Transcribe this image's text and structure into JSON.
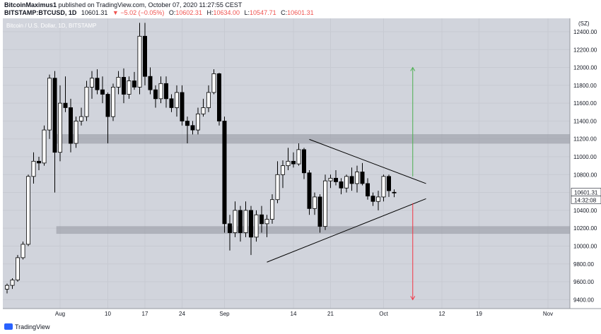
{
  "header": {
    "published_by": "BitcoinMaximus1",
    "published_text": "published on TradingView.com, October 07, 2020 11:27:55 CEST",
    "symbol": "BITSTAMP:BTCUSD, 1D",
    "last": "10601.31",
    "change": "▼ −5.02 (−0.05%)",
    "o_label": "O:",
    "o_value": "10602.31",
    "h_label": "H:",
    "h_value": "10634.00",
    "l_label": "L:",
    "l_value": "10547.71",
    "c_label": "C:",
    "c_value": "10601.31"
  },
  "footer": {
    "brand": "TradingView"
  },
  "chart_data": {
    "type": "candlestick",
    "watermark": "Bitcoin / U.S. Dollar, 1D, BITSTAMP",
    "ylim": [
      9300,
      12550
    ],
    "y_ticks": [
      9400,
      9600,
      9800,
      10000,
      10200,
      10400,
      10600,
      10800,
      11000,
      11200,
      11400,
      11600,
      11800,
      12000,
      12200,
      12400
    ],
    "y_tick_labels": [
      "9400.00",
      "9600.00",
      "9800.00",
      "10000.00",
      "10200.00",
      "10400.00",
      "10600.00",
      "10800.00",
      "11000.00",
      "11200.00",
      "11400.00",
      "11600.00",
      "11800.00",
      "12000.00",
      "12200.00",
      "12400.00"
    ],
    "y_top_label": "(SZ)",
    "last_price_label": "10601.31",
    "countdown_label": "14:32:08",
    "x_ticks": [
      {
        "label": "Aug",
        "bar": 10
      },
      {
        "label": "10",
        "bar": 19
      },
      {
        "label": "17",
        "bar": 26
      },
      {
        "label": "24",
        "bar": 33
      },
      {
        "label": "Sep",
        "bar": 41
      },
      {
        "label": "14",
        "bar": 54
      },
      {
        "label": "21",
        "bar": 61
      },
      {
        "label": "Oct",
        "bar": 71
      },
      {
        "label": "12",
        "bar": 82
      },
      {
        "label": "19",
        "bar": 89
      },
      {
        "label": "Nov",
        "bar": 102
      }
    ],
    "candles": [
      [
        9518,
        9580,
        9470,
        9560
      ],
      [
        9560,
        9640,
        9520,
        9620
      ],
      [
        9620,
        9900,
        9600,
        9870
      ],
      [
        9870,
        10050,
        9850,
        10020
      ],
      [
        10020,
        10800,
        10000,
        10780
      ],
      [
        10780,
        11050,
        10700,
        10950
      ],
      [
        10950,
        11000,
        10850,
        10930
      ],
      [
        10930,
        11350,
        10900,
        11300
      ],
      [
        11300,
        11920,
        11200,
        11880
      ],
      [
        11880,
        11960,
        10600,
        11050
      ],
      [
        11050,
        11800,
        10950,
        11600
      ],
      [
        11600,
        11900,
        11500,
        11550
      ],
      [
        11550,
        11650,
        11050,
        11150
      ],
      [
        11150,
        11450,
        11100,
        11400
      ],
      [
        11400,
        11550,
        11350,
        11450
      ],
      [
        11450,
        11850,
        11400,
        11780
      ],
      [
        11780,
        11960,
        11650,
        11880
      ],
      [
        11880,
        11980,
        11700,
        11750
      ],
      [
        11750,
        11900,
        11600,
        11700
      ],
      [
        11700,
        11720,
        11150,
        11450
      ],
      [
        11450,
        11820,
        11400,
        11780
      ],
      [
        11780,
        11960,
        11700,
        11890
      ],
      [
        11890,
        11990,
        11600,
        11700
      ],
      [
        11700,
        11900,
        11650,
        11850
      ],
      [
        11850,
        11950,
        11750,
        11780
      ],
      [
        11780,
        12500,
        11700,
        12350
      ],
      [
        12350,
        12500,
        11800,
        11900
      ],
      [
        11900,
        12000,
        11700,
        11750
      ],
      [
        11750,
        11800,
        11550,
        11650
      ],
      [
        11650,
        11900,
        11600,
        11820
      ],
      [
        11820,
        11900,
        11550,
        11650
      ],
      [
        11650,
        11700,
        11500,
        11550
      ],
      [
        11550,
        11800,
        11450,
        11720
      ],
      [
        11720,
        11800,
        11350,
        11400
      ],
      [
        11400,
        11450,
        11150,
        11350
      ],
      [
        11350,
        11400,
        11250,
        11300
      ],
      [
        11300,
        11550,
        11250,
        11480
      ],
      [
        11480,
        11650,
        11450,
        11550
      ],
      [
        11550,
        11800,
        11500,
        11720
      ],
      [
        11720,
        11980,
        11700,
        11930
      ],
      [
        11930,
        11940,
        11350,
        11400
      ],
      [
        11400,
        11450,
        10150,
        10250
      ],
      [
        10250,
        10350,
        9950,
        10150
      ],
      [
        10150,
        10500,
        10100,
        10400
      ],
      [
        10400,
        10450,
        10050,
        10150
      ],
      [
        10150,
        10500,
        10100,
        10400
      ],
      [
        10400,
        10450,
        9900,
        10100
      ],
      [
        10100,
        10400,
        10050,
        10350
      ],
      [
        10350,
        10450,
        10150,
        10250
      ],
      [
        10250,
        10350,
        10100,
        10300
      ],
      [
        10300,
        10580,
        10250,
        10520
      ],
      [
        10520,
        10950,
        10480,
        10800
      ],
      [
        10800,
        10960,
        10650,
        10900
      ],
      [
        10900,
        11100,
        10850,
        10950
      ],
      [
        10950,
        11050,
        10880,
        10920
      ],
      [
        10920,
        11150,
        10900,
        11080
      ],
      [
        11080,
        11100,
        10750,
        10820
      ],
      [
        10820,
        10850,
        10350,
        10420
      ],
      [
        10420,
        10600,
        10350,
        10550
      ],
      [
        10550,
        10580,
        10150,
        10220
      ],
      [
        10220,
        10800,
        10180,
        10730
      ],
      [
        10730,
        10800,
        10650,
        10760
      ],
      [
        10760,
        10850,
        10680,
        10720
      ],
      [
        10720,
        10760,
        10580,
        10650
      ],
      [
        10650,
        10800,
        10600,
        10780
      ],
      [
        10780,
        10880,
        10620,
        10700
      ],
      [
        10700,
        10900,
        10600,
        10830
      ],
      [
        10830,
        10930,
        10680,
        10700
      ],
      [
        10700,
        10760,
        10520,
        10560
      ],
      [
        10560,
        10600,
        10450,
        10500
      ],
      [
        10500,
        10620,
        10400,
        10550
      ],
      [
        10550,
        10800,
        10500,
        10780
      ],
      [
        10780,
        10800,
        10550,
        10620
      ],
      [
        10602.31,
        10634,
        10547.71,
        10601.31
      ]
    ],
    "zones": [
      {
        "name": "resistance-zone",
        "from": 11150,
        "to": 11250
      },
      {
        "name": "support-zone",
        "from": 10140,
        "to": 10220
      }
    ],
    "triangle": {
      "upper": [
        {
          "bar": 57,
          "price": 11195
        },
        {
          "bar": 79,
          "price": 10700
        }
      ],
      "lower": [
        {
          "bar": 49,
          "price": 9820
        },
        {
          "bar": 79,
          "price": 10530
        }
      ]
    },
    "arrows": [
      {
        "name": "target-up-arrow",
        "bar": 76.5,
        "from": 10780,
        "to": 12000,
        "color": "#4caf50"
      },
      {
        "name": "target-down-arrow",
        "bar": 76.5,
        "from": 10480,
        "to": 9400,
        "color": "#f23645"
      }
    ],
    "colors": {
      "background": "#d1d4dc",
      "grid": "#c7cad2",
      "up": "#ffffff",
      "down": "#000000",
      "wick": "#000000",
      "zone": "#9598a1",
      "text": "#131722",
      "last_price_bg": "#ffffff"
    }
  }
}
